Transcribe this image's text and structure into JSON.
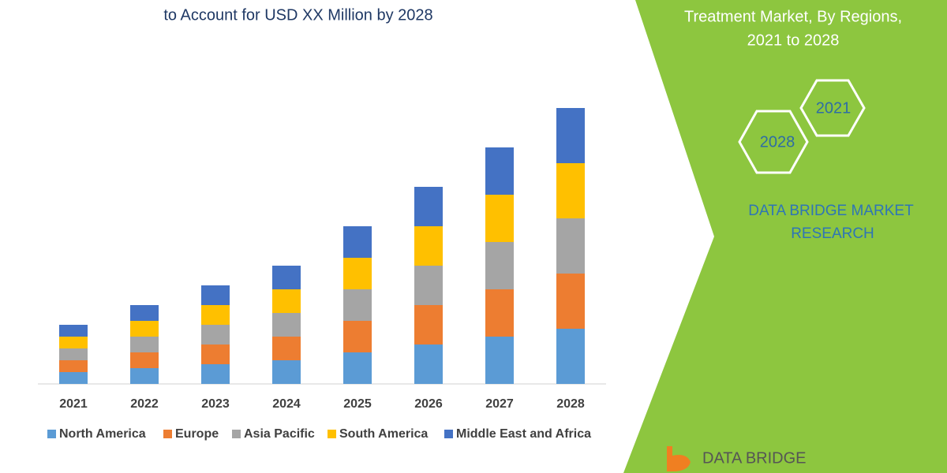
{
  "chart_data": {
    "type": "stacked-bar",
    "title": "to Account for USD XX Million by 2028",
    "categories": [
      "2021",
      "2022",
      "2023",
      "2024",
      "2025",
      "2026",
      "2027",
      "2028"
    ],
    "series": [
      {
        "name": "North America",
        "color": "#5b9bd5",
        "values": [
          15,
          20,
          25,
          30,
          40,
          50,
          60,
          70
        ]
      },
      {
        "name": "Europe",
        "color": "#ed7d31",
        "values": [
          15,
          20,
          25,
          30,
          40,
          50,
          60,
          70
        ]
      },
      {
        "name": "Asia Pacific",
        "color": "#a5a5a5",
        "values": [
          15,
          20,
          25,
          30,
          40,
          50,
          60,
          70
        ]
      },
      {
        "name": "South America",
        "color": "#ffc000",
        "values": [
          15,
          20,
          25,
          30,
          40,
          50,
          60,
          70
        ]
      },
      {
        "name": "Middle East and Africa",
        "color": "#4472c4",
        "values": [
          15,
          20,
          25,
          30,
          40,
          50,
          60,
          70
        ]
      }
    ]
  },
  "sidebar": {
    "heading": [
      "Treatment Market, By Regions,",
      "2021 to 2028"
    ],
    "hexagons": [
      "2021",
      "2028"
    ],
    "brand": [
      "DATA BRIDGE MARKET",
      "RESEARCH"
    ],
    "logo": "DATA BRIDGE"
  }
}
